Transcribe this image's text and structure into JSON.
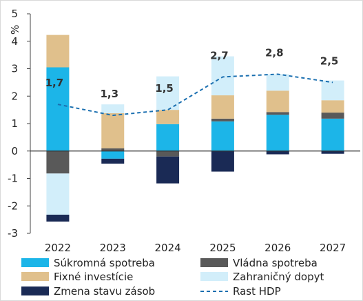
{
  "chart_data": {
    "type": "bar",
    "stacked": true,
    "categories": [
      "2022",
      "2023",
      "2024",
      "2025",
      "2026",
      "2027"
    ],
    "ylabel": "%",
    "ylim": [
      -3,
      5
    ],
    "yticks": [
      -3,
      -2,
      -1,
      0,
      1,
      2,
      3,
      4,
      5
    ],
    "series": [
      {
        "name": "Súkromná spotreba",
        "color": "#1cb5e8",
        "values": [
          3.05,
          -0.28,
          0.98,
          1.08,
          1.32,
          1.18
        ]
      },
      {
        "name": "Vládna spotreba",
        "color": "#595959",
        "values": [
          -0.82,
          0.1,
          -0.2,
          0.1,
          0.1,
          0.22
        ]
      },
      {
        "name": "Fixné investície",
        "color": "#e0c08c",
        "values": [
          1.18,
          1.28,
          0.52,
          0.85,
          0.78,
          0.45
        ]
      },
      {
        "name": "Zahraničný dopyt",
        "color": "#d2eefa",
        "values": [
          -1.5,
          0.32,
          1.22,
          1.42,
          0.6,
          0.72
        ]
      },
      {
        "name": "Zmena stavu zásob",
        "color": "#1a2a55",
        "values": [
          -0.25,
          -0.18,
          -0.98,
          -0.75,
          -0.12,
          -0.1
        ]
      }
    ],
    "line": {
      "name": "Rast HDP",
      "color": "#1a6fb0",
      "values": [
        1.7,
        1.3,
        1.5,
        2.7,
        2.8,
        2.5
      ],
      "labels": [
        "1,7",
        "1,3",
        "1,5",
        "2,7",
        "2,8",
        "2,5"
      ]
    },
    "legend_position": "bottom"
  }
}
